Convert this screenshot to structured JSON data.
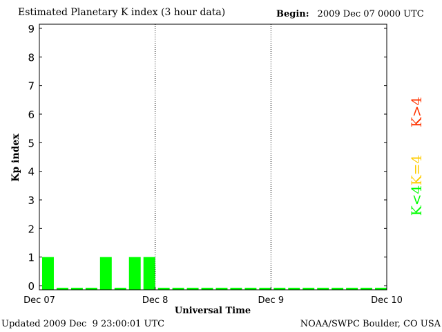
{
  "header": {
    "title": "Estimated Planetary K index (3 hour data)",
    "begin_label": "Begin:",
    "begin_value": "2009 Dec 07 0000 UTC"
  },
  "footer": {
    "updated": "Updated 2009 Dec  9 23:00:01 UTC",
    "credit": "NOAA/SWPC Boulder, CO USA"
  },
  "legend": [
    {
      "label": "K>4",
      "color": "#ff3300"
    },
    {
      "label": "K=4",
      "color": "#ffcc00"
    },
    {
      "label": "K<4",
      "color": "#00ff00"
    }
  ],
  "chart_data": {
    "type": "bar",
    "title": "Estimated Planetary K index (3 hour data)",
    "ylabel": "Kp index",
    "xlabel": "Universal Time",
    "ylim": [
      0,
      9
    ],
    "yticks": [
      0,
      1,
      2,
      3,
      4,
      5,
      6,
      7,
      8,
      9
    ],
    "xlim_hours": [
      0,
      72
    ],
    "xticks": [
      {
        "hour": 0,
        "label": "Dec 07"
      },
      {
        "hour": 24,
        "label": "Dec 8"
      },
      {
        "hour": 48,
        "label": "Dec 9"
      },
      {
        "hour": 72,
        "label": "Dec 10"
      }
    ],
    "day_separators_hours": [
      24,
      48
    ],
    "interval_hours": 3,
    "values": [
      1,
      0,
      0,
      0,
      1,
      0,
      1,
      1,
      0,
      0,
      0,
      0,
      0,
      0,
      0,
      0,
      0,
      0,
      0,
      0,
      0,
      0,
      0,
      0
    ],
    "bar_color": "#00ff00"
  }
}
